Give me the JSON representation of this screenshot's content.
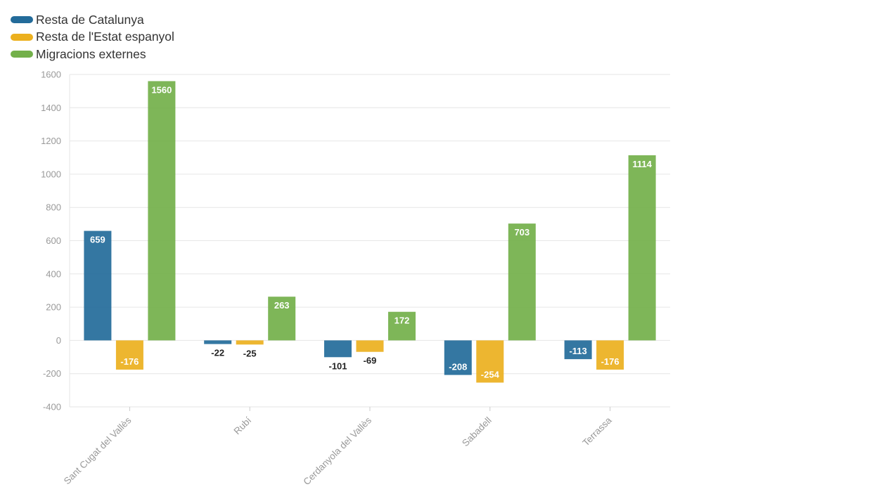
{
  "chart_data": {
    "type": "bar",
    "categories": [
      "Sant Cugat del Vallès",
      "Rubí",
      "Cerdanyola del Vallès",
      "Sabadell",
      "Terrassa"
    ],
    "series": [
      {
        "name": "Resta de Catalunya",
        "color": "#236b9a",
        "values": [
          659,
          -22,
          -101,
          -208,
          -113
        ]
      },
      {
        "name": "Resta de l'Estat espanyol",
        "color": "#ecb01e",
        "values": [
          -176,
          -25,
          -69,
          -254,
          -176
        ]
      },
      {
        "name": "Migracions externes",
        "color": "#73b04a",
        "values": [
          1560,
          263,
          172,
          703,
          1114
        ]
      }
    ],
    "ylim": [
      -400,
      1600
    ],
    "yticks": [
      -400,
      -200,
      0,
      200,
      400,
      600,
      800,
      1000,
      1200,
      1400,
      1600
    ],
    "grid": true,
    "legend_position": "top-left",
    "data_labels": true
  }
}
